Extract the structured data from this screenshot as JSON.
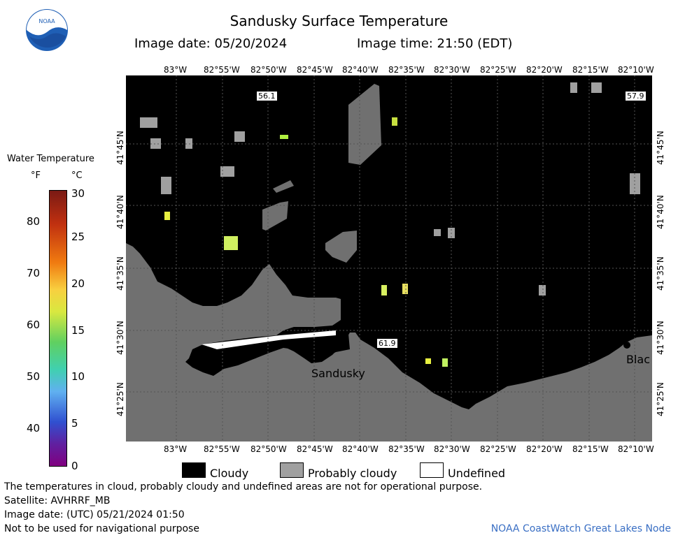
{
  "title": "Sandusky Surface Temperature",
  "image_date": "Image date: 05/20/2024",
  "image_time": "Image time: 21:50 (EDT)",
  "logo_text": "NOAA",
  "colorbar": {
    "title": "Water Temperature",
    "unit_f": "°F",
    "unit_c": "°C",
    "f_ticks": [
      "80",
      "70",
      "60",
      "50",
      "40"
    ],
    "c_ticks": [
      "30",
      "25",
      "20",
      "15",
      "10",
      "5",
      "0"
    ]
  },
  "axes": {
    "top_lon": [
      "83°W",
      "82°55'W",
      "82°50'W",
      "82°45'W",
      "82°40'W",
      "82°35'W",
      "82°30'W",
      "82°25'W",
      "82°20'W",
      "82°15'W",
      "82°10'W"
    ],
    "bottom_lon": [
      "83°W",
      "82°55'W",
      "82°50'W",
      "82°45'W",
      "82°40'W",
      "82°35'W",
      "82°30'W",
      "82°25'W",
      "82°20'W",
      "82°15'W",
      "82°10'W"
    ],
    "lat": [
      "41°45'N",
      "41°40'N",
      "41°35'N",
      "41°30'N",
      "41°25'N"
    ]
  },
  "map_labels": {
    "city": "Sandusky",
    "city2": "Blac",
    "temp1": "56.1",
    "temp2": "57.9",
    "temp3": "61.9"
  },
  "legend": {
    "cloudy": "Cloudy",
    "probably_cloudy": "Probably cloudy",
    "undefined": "Undefined"
  },
  "notes": {
    "disclaimer": "The temperatures in cloud, probably cloudy and undefined areas are not for operational purpose.",
    "satellite": "Satellite: AVHRRF_MB",
    "utc": "Image date: (UTC) 05/21/2024  01:50",
    "nav": "Not to be used for navigational purpose",
    "credit": "NOAA CoastWatch Great Lakes Node"
  },
  "colors": {
    "cloudy": "#000000",
    "probably_cloudy": "#a0a0a0",
    "land": "#707070",
    "undefined": "#ffffff",
    "credit": "#3a6fc4"
  }
}
